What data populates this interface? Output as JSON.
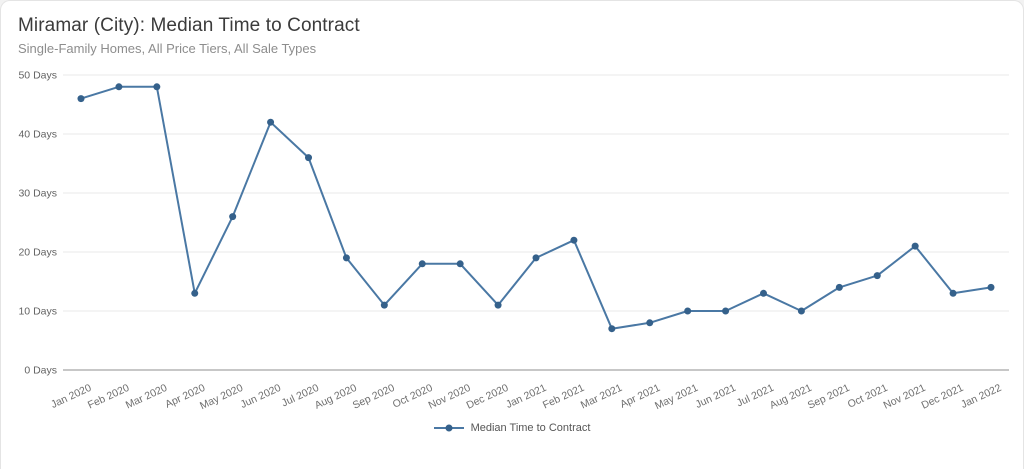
{
  "chart_data": {
    "type": "line",
    "title": "Miramar (City): Median Time to Contract",
    "subtitle": "Single-Family Homes, All Price Tiers, All Sale Types",
    "categories": [
      "Jan 2020",
      "Feb 2020",
      "Mar 2020",
      "Apr 2020",
      "May 2020",
      "Jun 2020",
      "Jul 2020",
      "Aug 2020",
      "Sep 2020",
      "Oct 2020",
      "Nov 2020",
      "Dec 2020",
      "Jan 2021",
      "Feb 2021",
      "Mar 2021",
      "Apr 2021",
      "May 2021",
      "Jun 2021",
      "Jul 2021",
      "Aug 2021",
      "Sep 2021",
      "Oct 2021",
      "Nov 2021",
      "Dec 2021",
      "Jan 2022"
    ],
    "series": [
      {
        "name": "Median Time to Contract",
        "values": [
          46,
          48,
          48,
          13,
          26,
          42,
          36,
          19,
          11,
          18,
          18,
          11,
          19,
          22,
          7,
          8,
          10,
          10,
          13,
          10,
          14,
          16,
          21,
          13,
          14
        ]
      }
    ],
    "xlabel": "",
    "ylabel": "Days",
    "ylim": [
      0,
      50
    ],
    "yticks": [
      0,
      10,
      20,
      30,
      40,
      50
    ],
    "ytick_labels": [
      "0 Days",
      "10 Days",
      "20 Days",
      "30 Days",
      "40 Days",
      "50 Days"
    ],
    "grid": true,
    "legend_position": "bottom",
    "colors": {
      "line": "#4a78a4",
      "marker": "#35618b",
      "grid": "#e9e9e9",
      "axis": "#8f8f8f"
    }
  }
}
